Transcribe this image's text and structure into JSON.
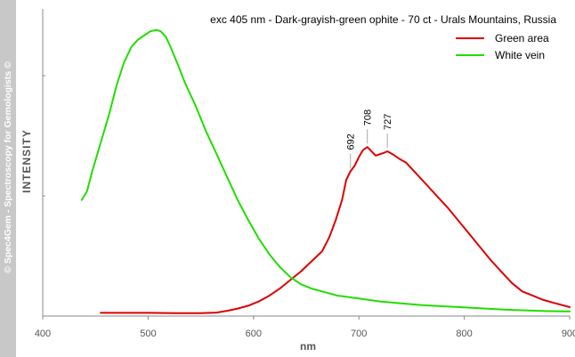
{
  "sidebar": {
    "text": "© Spec4Gem - Spectroscopy for Gemologists ©"
  },
  "chart_data": {
    "type": "line",
    "title": "exc 405 nm - Dark-grayish-green ophite - 70 ct - Urals Mountains, Russia",
    "xlabel": "nm",
    "ylabel": "INTENSITY",
    "xlim": [
      400,
      900
    ],
    "ylim": [
      0,
      100
    ],
    "xticks": [
      400,
      500,
      600,
      700,
      800,
      900
    ],
    "grid": false,
    "legend_position": "top-right",
    "series": [
      {
        "name": "Green area",
        "color": "#dd0000",
        "x": [
          455,
          480,
          500,
          525,
          550,
          565,
          575,
          585,
          595,
          605,
          615,
          625,
          635,
          645,
          655,
          665,
          672,
          678,
          684,
          688,
          692,
          696,
          700,
          704,
          708,
          712,
          716,
          720,
          724,
          727,
          732,
          738,
          745,
          755,
          765,
          775,
          785,
          795,
          805,
          815,
          825,
          835,
          845,
          855,
          865,
          875,
          885,
          895,
          900
        ],
        "y": [
          0.5,
          0.5,
          0.5,
          0.4,
          0.4,
          0.6,
          1.2,
          2.0,
          3.0,
          4.5,
          6.5,
          9.0,
          12.0,
          15.0,
          18.5,
          22.0,
          27.0,
          33.0,
          40.0,
          47.0,
          50.0,
          52.0,
          55.0,
          57.5,
          58.5,
          57.0,
          55.5,
          56.0,
          56.5,
          57.0,
          56.0,
          54.5,
          53.0,
          49.0,
          45.0,
          41.0,
          37.0,
          32.5,
          28.0,
          23.5,
          19.0,
          15.0,
          11.0,
          8.0,
          6.5,
          5.0,
          4.0,
          3.0,
          2.5
        ]
      },
      {
        "name": "White vein",
        "color": "#22dd00",
        "x": [
          437,
          442,
          447,
          455,
          463,
          470,
          477,
          484,
          490,
          496,
          502,
          508,
          512,
          517,
          522,
          528,
          535,
          545,
          555,
          565,
          575,
          585,
          595,
          605,
          615,
          625,
          635,
          645,
          655,
          665,
          680,
          700,
          720,
          740,
          760,
          780,
          800,
          820,
          840,
          860,
          880,
          900
        ],
        "y": [
          40.0,
          43.0,
          50.0,
          60.0,
          70.0,
          80.0,
          88.0,
          93.5,
          96.0,
          97.5,
          99.0,
          99.5,
          99.0,
          97.0,
          93.0,
          87.5,
          81.0,
          73.0,
          64.0,
          56.0,
          48.0,
          40.0,
          33.0,
          26.5,
          21.0,
          16.5,
          13.0,
          10.5,
          9.0,
          8.0,
          6.5,
          5.5,
          4.5,
          3.8,
          3.2,
          2.8,
          2.4,
          2.0,
          1.6,
          1.3,
          1.1,
          1.0
        ]
      }
    ],
    "annotations": [
      {
        "label": "692",
        "x": 692,
        "y": 50.0
      },
      {
        "label": "708",
        "x": 708,
        "y": 58.5
      },
      {
        "label": "727",
        "x": 727,
        "y": 57.0
      }
    ]
  }
}
